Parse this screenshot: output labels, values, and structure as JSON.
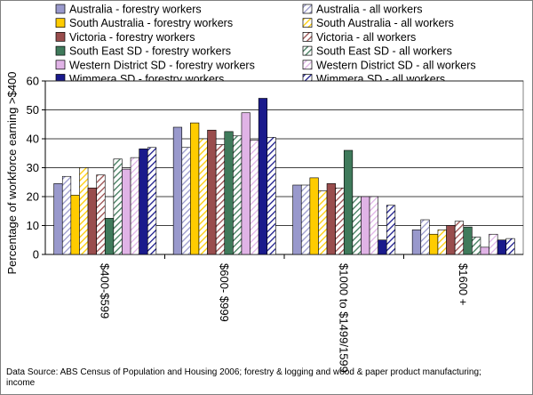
{
  "chart_data": {
    "type": "bar",
    "title": "",
    "xlabel": "",
    "ylabel": "Percentage of workforce earning >$400",
    "ylim": [
      0,
      60
    ],
    "yticks": [
      0,
      10,
      20,
      30,
      40,
      50,
      60
    ],
    "grid": true,
    "legend_position": "top",
    "categories": [
      "$400-$599",
      "$600- $999",
      "$1000 to $1499/1599",
      "$1600 +"
    ],
    "series": [
      {
        "name": "Australia - forestry workers",
        "color": "#9999cc",
        "pattern": "solid",
        "values": [
          24.5,
          44,
          24,
          8.5
        ]
      },
      {
        "name": "Australia - all workers",
        "color": "#9999cc",
        "pattern": "hatched",
        "values": [
          27,
          37,
          24,
          12
        ]
      },
      {
        "name": "South Australia - forestry workers",
        "color": "#ffcc00",
        "pattern": "solid",
        "values": [
          20.5,
          45.5,
          26.5,
          7
        ]
      },
      {
        "name": "South Australia - all workers",
        "color": "#ffcc00",
        "pattern": "hatched",
        "values": [
          30,
          40,
          22,
          8.5
        ]
      },
      {
        "name": "Victoria - forestry workers",
        "color": "#994d4d",
        "pattern": "solid",
        "values": [
          23,
          43,
          24.5,
          10
        ]
      },
      {
        "name": "Victoria - all workers",
        "color": "#994d4d",
        "pattern": "hatched",
        "values": [
          27.5,
          38,
          23,
          11.5
        ]
      },
      {
        "name": "South East SD - forestry workers",
        "color": "#3f7a5b",
        "pattern": "solid",
        "values": [
          12.5,
          42.5,
          36,
          9.5
        ]
      },
      {
        "name": "South East SD - all workers",
        "color": "#3f7a5b",
        "pattern": "hatched",
        "values": [
          33,
          41,
          20,
          6
        ]
      },
      {
        "name": "Western District SD - forestry workers",
        "color": "#e0b3e6",
        "pattern": "solid",
        "values": [
          29.5,
          49,
          20,
          2.5
        ]
      },
      {
        "name": "Western District SD - all workers",
        "color": "#e0b3e6",
        "pattern": "hatched",
        "values": [
          33.5,
          39.5,
          20,
          7
        ]
      },
      {
        "name": "Wimmera SD - forestry workers",
        "color": "#1a1a8c",
        "pattern": "solid",
        "values": [
          36.5,
          54,
          5,
          5
        ]
      },
      {
        "name": "Wimmera SD - all workers",
        "color": "#1a1a8c",
        "pattern": "hatched",
        "values": [
          37,
          40.5,
          17,
          5.5
        ]
      }
    ]
  },
  "source_note": "Data Source: ABS Census of Population and Housing 2006; forestry & logging and wood & paper product manufacturing; income"
}
